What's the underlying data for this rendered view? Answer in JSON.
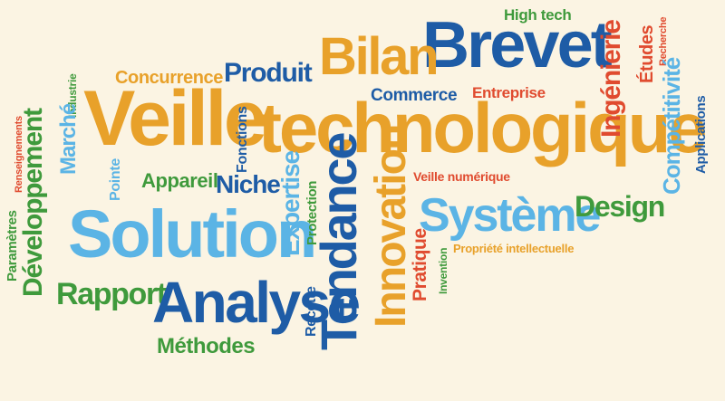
{
  "colors": {
    "background": "#fbf4e3",
    "orange": "#e8a12a",
    "blue": "#1e5ca6",
    "light_blue": "#5bb4e5",
    "green": "#3f9a3c",
    "red": "#e04b2f"
  },
  "words": {
    "veille": "Veille",
    "technologique": "technologique",
    "brevet": "Brevet",
    "bilan": "Bilan",
    "produit": "Produit",
    "concurrence": "Concurrence",
    "high_tech": "High tech",
    "ingenierie": "Ingénierie",
    "etudes": "Études",
    "recherche": "Recherche",
    "commerce": "Commerce",
    "entreprise": "Entreprise",
    "competitivite": "Compétitivité",
    "applications": "Applications",
    "industrie": "Industrie",
    "marche": "Marché",
    "renseignements": "Renseignements",
    "developpement": "Développement",
    "parametres": "Paramètres",
    "fonctions": "Fonctions",
    "pointe": "Pointe",
    "appareil": "Appareil",
    "niche": "Niche",
    "expertise": "Expertise",
    "protection": "Protection",
    "tendance": "Tendance",
    "innovation": "Innovation",
    "veille_numerique": "Veille numérique",
    "systeme": "Système",
    "design": "Design",
    "solution": "Solution",
    "propriete_intellectuelle": "Propriété intellectuelle",
    "pratique": "Pratique",
    "invention": "Invention",
    "rapport": "Rapport",
    "analyse": "Analyse",
    "recette": "Recette",
    "methodes": "Méthodes"
  }
}
